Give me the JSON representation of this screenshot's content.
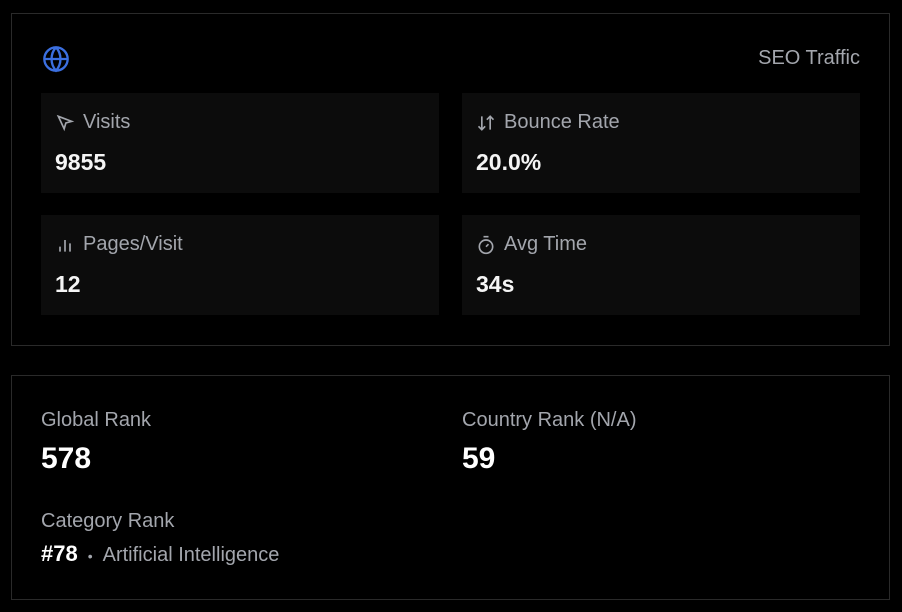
{
  "header": {
    "title": "SEO Traffic",
    "icon": "globe-icon",
    "accent": "#3b6fe0"
  },
  "stats": [
    {
      "label": "Visits",
      "value": "9855",
      "icon": "cursor-icon"
    },
    {
      "label": "Bounce Rate",
      "value": "20.0%",
      "icon": "arrows-up-down-icon"
    },
    {
      "label": "Pages/Visit",
      "value": "12",
      "icon": "bar-chart-icon"
    },
    {
      "label": "Avg Time",
      "value": "34s",
      "icon": "timer-icon"
    }
  ],
  "ranks": {
    "global": {
      "label": "Global Rank",
      "value": "578"
    },
    "country": {
      "label": "Country Rank (N/A)",
      "value": "59"
    },
    "category": {
      "label": "Category Rank",
      "value": "#78",
      "name": "Artificial Intelligence"
    }
  }
}
